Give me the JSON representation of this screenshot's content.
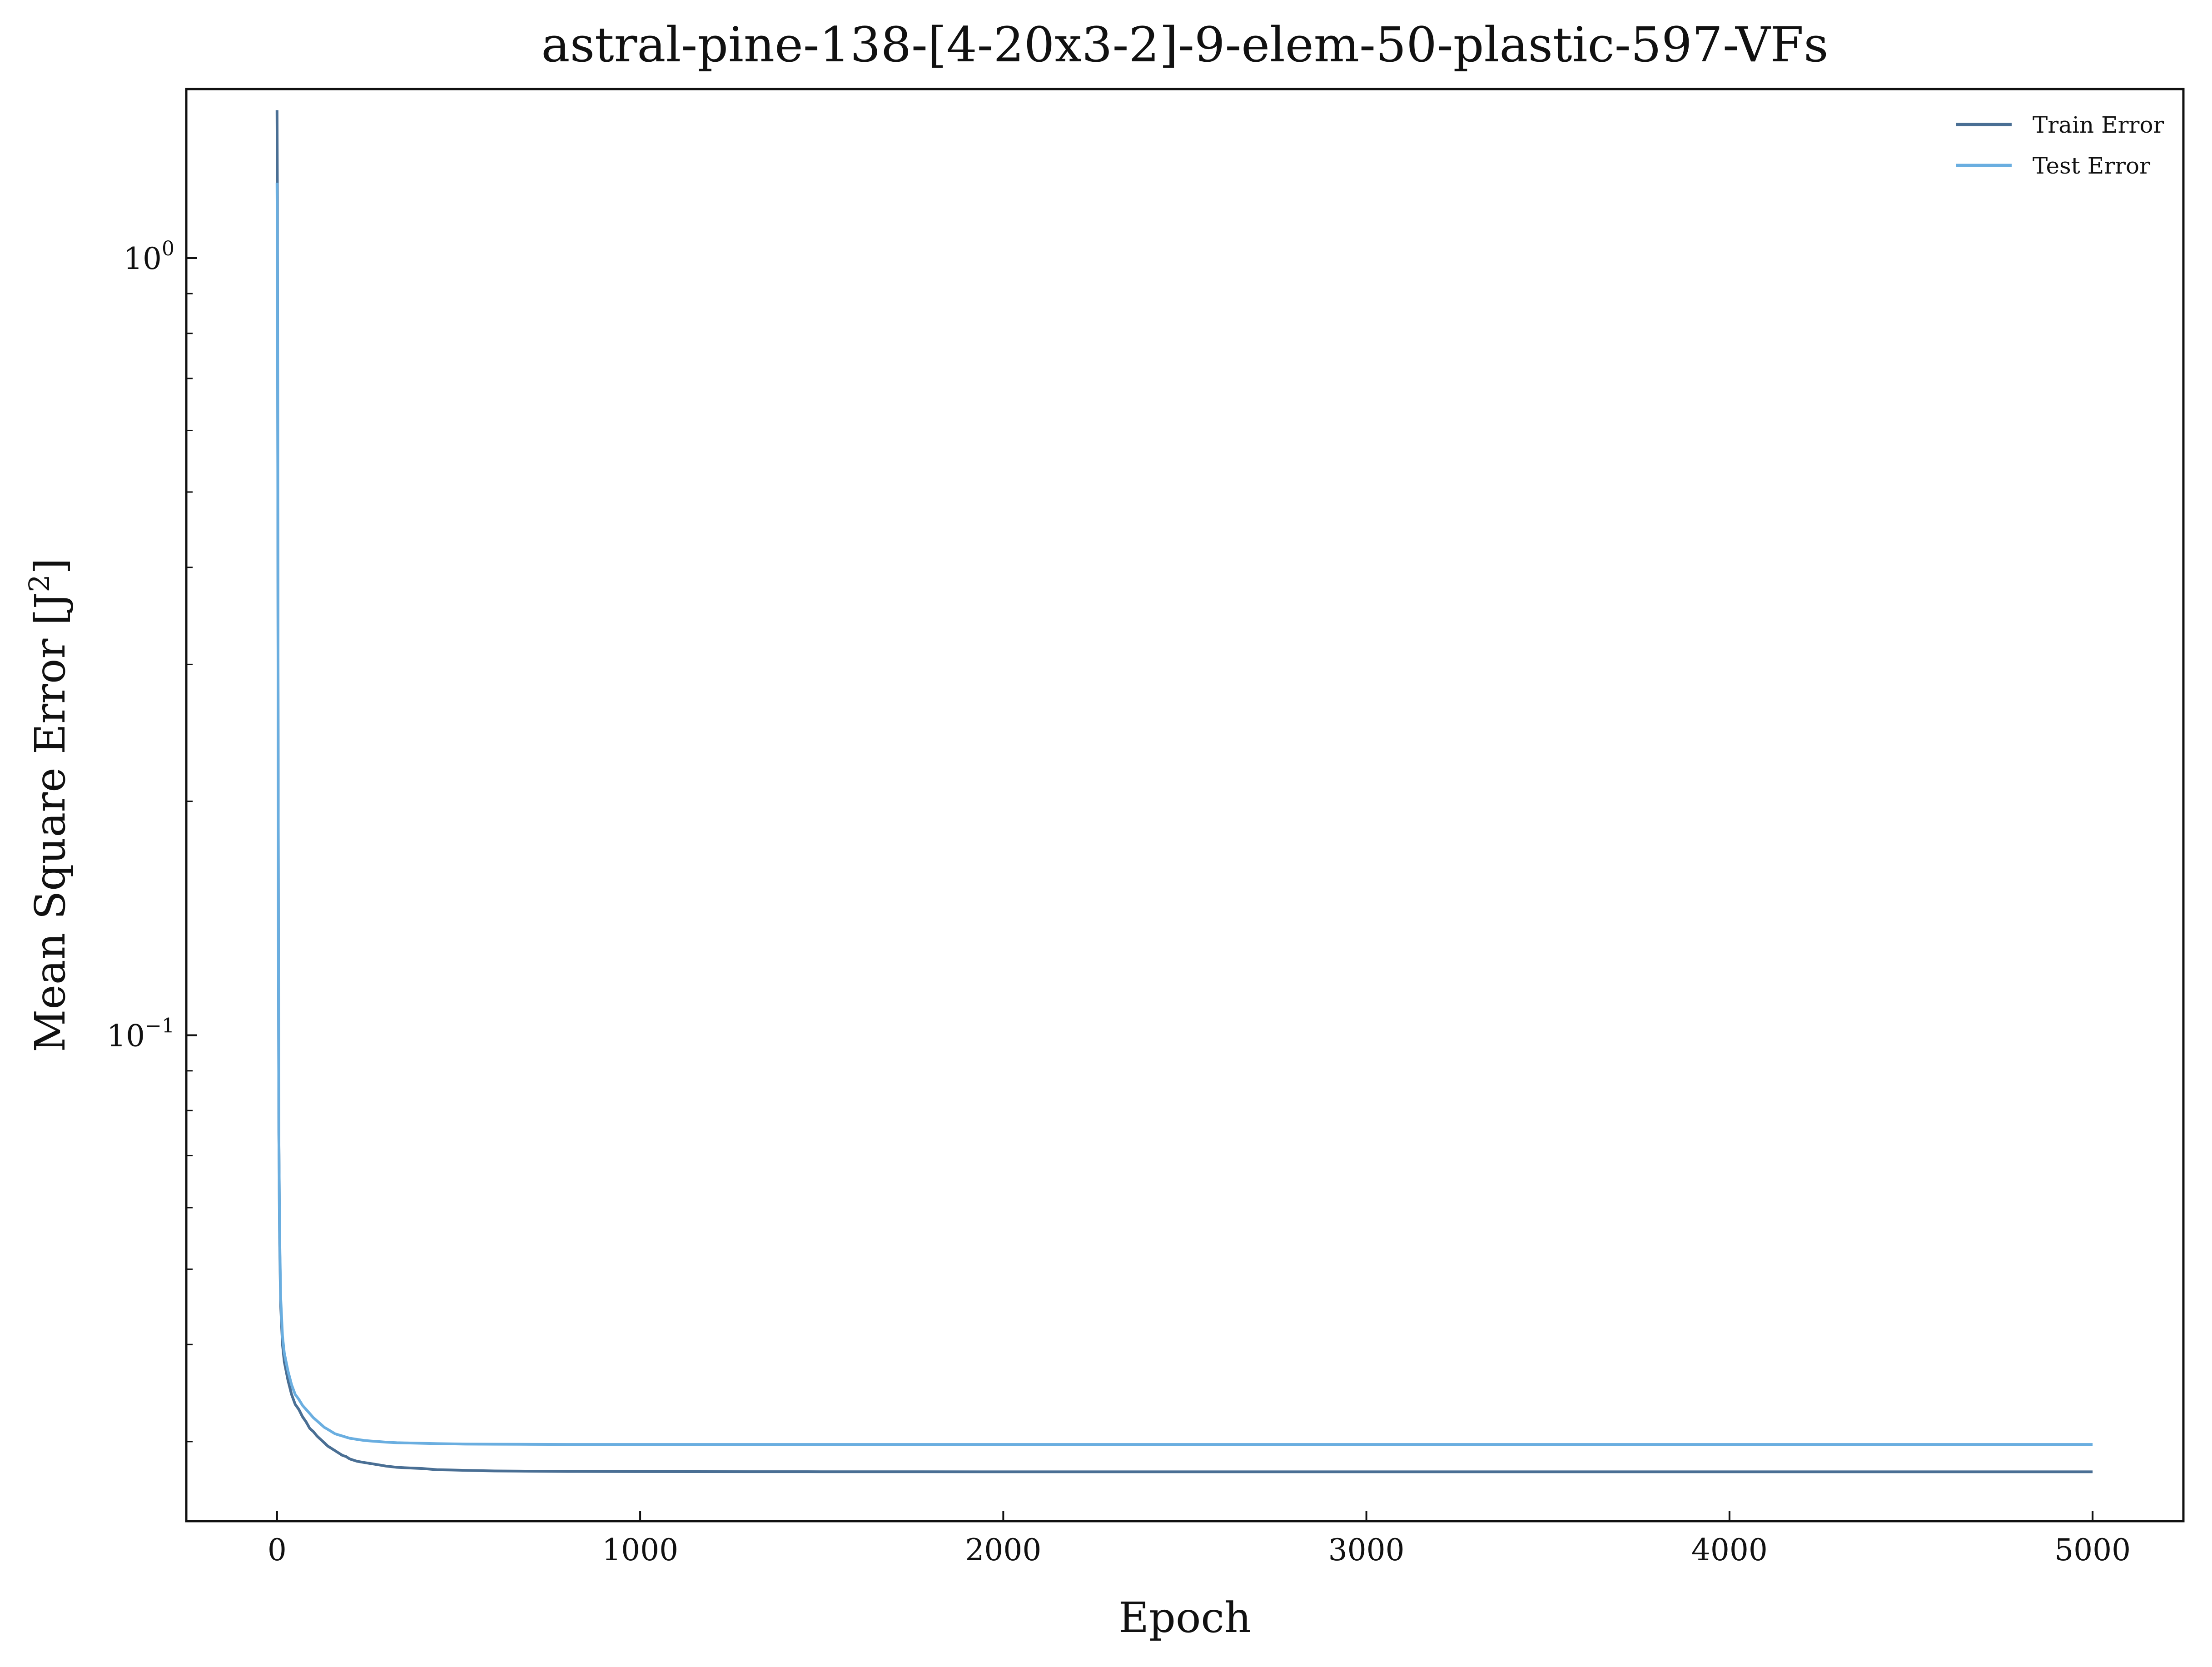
{
  "chart_data": {
    "type": "line",
    "title": "astral-pine-138-[4-20x3-2]-9-elem-50-plastic-597-VFs",
    "xlabel": "Epoch",
    "ylabel_main": "Mean Square Error [J",
    "ylabel_sup": "2",
    "ylabel_close": "]",
    "yscale": "log",
    "xlim": [
      -250,
      5250
    ],
    "ylim": [
      0.0237,
      1.65
    ],
    "grid": false,
    "legend_position": "top-right",
    "x_ticks": [
      {
        "value": 0,
        "label": "0"
      },
      {
        "value": 1000,
        "label": "1000"
      },
      {
        "value": 2000,
        "label": "2000"
      },
      {
        "value": 3000,
        "label": "3000"
      },
      {
        "value": 4000,
        "label": "4000"
      },
      {
        "value": 5000,
        "label": "5000"
      }
    ],
    "y_ticks": [
      {
        "value": 1.0,
        "base": "10",
        "exp": "0"
      },
      {
        "value": 0.1,
        "base": "10",
        "exp": "−1"
      }
    ],
    "y_minor_ticks": [
      0.03,
      0.04,
      0.05,
      0.06,
      0.07,
      0.08,
      0.09,
      0.2,
      0.3,
      0.4,
      0.5,
      0.6,
      0.7,
      0.8,
      0.9
    ],
    "series": [
      {
        "name": "Train Error",
        "color": "#4a6f94",
        "x": [
          0,
          1,
          2,
          3,
          4,
          5,
          7,
          10,
          15,
          20,
          30,
          40,
          50,
          60,
          70,
          80,
          90,
          100,
          110,
          120,
          130,
          140,
          150,
          160,
          170,
          180,
          190,
          200,
          220,
          240,
          260,
          280,
          300,
          330,
          360,
          400,
          440,
          480,
          520,
          600,
          700,
          800,
          1000,
          1500,
          2000,
          3000,
          4000,
          5000
        ],
        "y": [
          1.55,
          1.2,
          0.6,
          0.25,
          0.12,
          0.075,
          0.055,
          0.045,
          0.04,
          0.038,
          0.036,
          0.0345,
          0.0335,
          0.033,
          0.0323,
          0.0318,
          0.0312,
          0.0309,
          0.0305,
          0.0302,
          0.0299,
          0.0296,
          0.0294,
          0.0292,
          0.029,
          0.0288,
          0.0287,
          0.0285,
          0.0283,
          0.0282,
          0.0281,
          0.028,
          0.0279,
          0.0278,
          0.02775,
          0.0277,
          0.0276,
          0.02758,
          0.02755,
          0.0275,
          0.02748,
          0.02746,
          0.02745,
          0.02744,
          0.02743,
          0.02743,
          0.02743,
          0.02743
        ]
      },
      {
        "name": "Test Error",
        "color": "#6aaee0",
        "x": [
          0,
          1,
          2,
          3,
          4,
          5,
          7,
          10,
          15,
          20,
          30,
          40,
          50,
          60,
          70,
          80,
          90,
          100,
          110,
          120,
          130,
          140,
          150,
          160,
          170,
          180,
          190,
          200,
          220,
          240,
          260,
          280,
          300,
          330,
          360,
          400,
          440,
          480,
          520,
          600,
          700,
          800,
          1000,
          1500,
          2000,
          3000,
          4000,
          5000
        ],
        "y": [
          1.25,
          1.0,
          0.55,
          0.24,
          0.12,
          0.075,
          0.056,
          0.046,
          0.041,
          0.039,
          0.037,
          0.0355,
          0.0345,
          0.034,
          0.0334,
          0.033,
          0.0326,
          0.0322,
          0.0319,
          0.0316,
          0.0313,
          0.0311,
          0.0309,
          0.0307,
          0.0306,
          0.0305,
          0.0304,
          0.0303,
          0.0302,
          0.0301,
          0.03005,
          0.03,
          0.02995,
          0.0299,
          0.02988,
          0.02985,
          0.02982,
          0.0298,
          0.02978,
          0.02977,
          0.02976,
          0.02975,
          0.02975,
          0.02975,
          0.02975,
          0.02975,
          0.02975,
          0.02975
        ]
      }
    ]
  }
}
